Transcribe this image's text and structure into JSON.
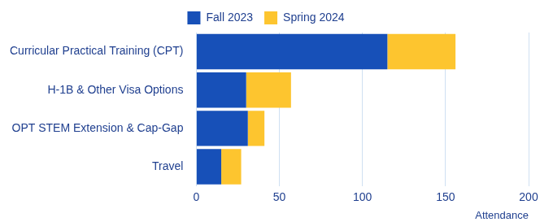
{
  "chart_data": {
    "type": "bar",
    "orientation": "horizontal",
    "stacked": true,
    "categories": [
      "Curricular Practical Training (CPT)",
      "H-1B & Other Visa Options",
      "OPT STEM Extension & Cap-Gap",
      "Travel"
    ],
    "series": [
      {
        "name": "Fall 2023",
        "color": "#1750b8",
        "values": [
          115,
          30,
          31,
          15
        ]
      },
      {
        "name": "Spring 2024",
        "color": "#fdc52f",
        "values": [
          41,
          27,
          10,
          12
        ]
      }
    ],
    "x_label": "Attendance",
    "xlim": [
      0,
      200
    ],
    "xticks": [
      0,
      50,
      100,
      150,
      200
    ],
    "grid": true,
    "legend": "top"
  }
}
